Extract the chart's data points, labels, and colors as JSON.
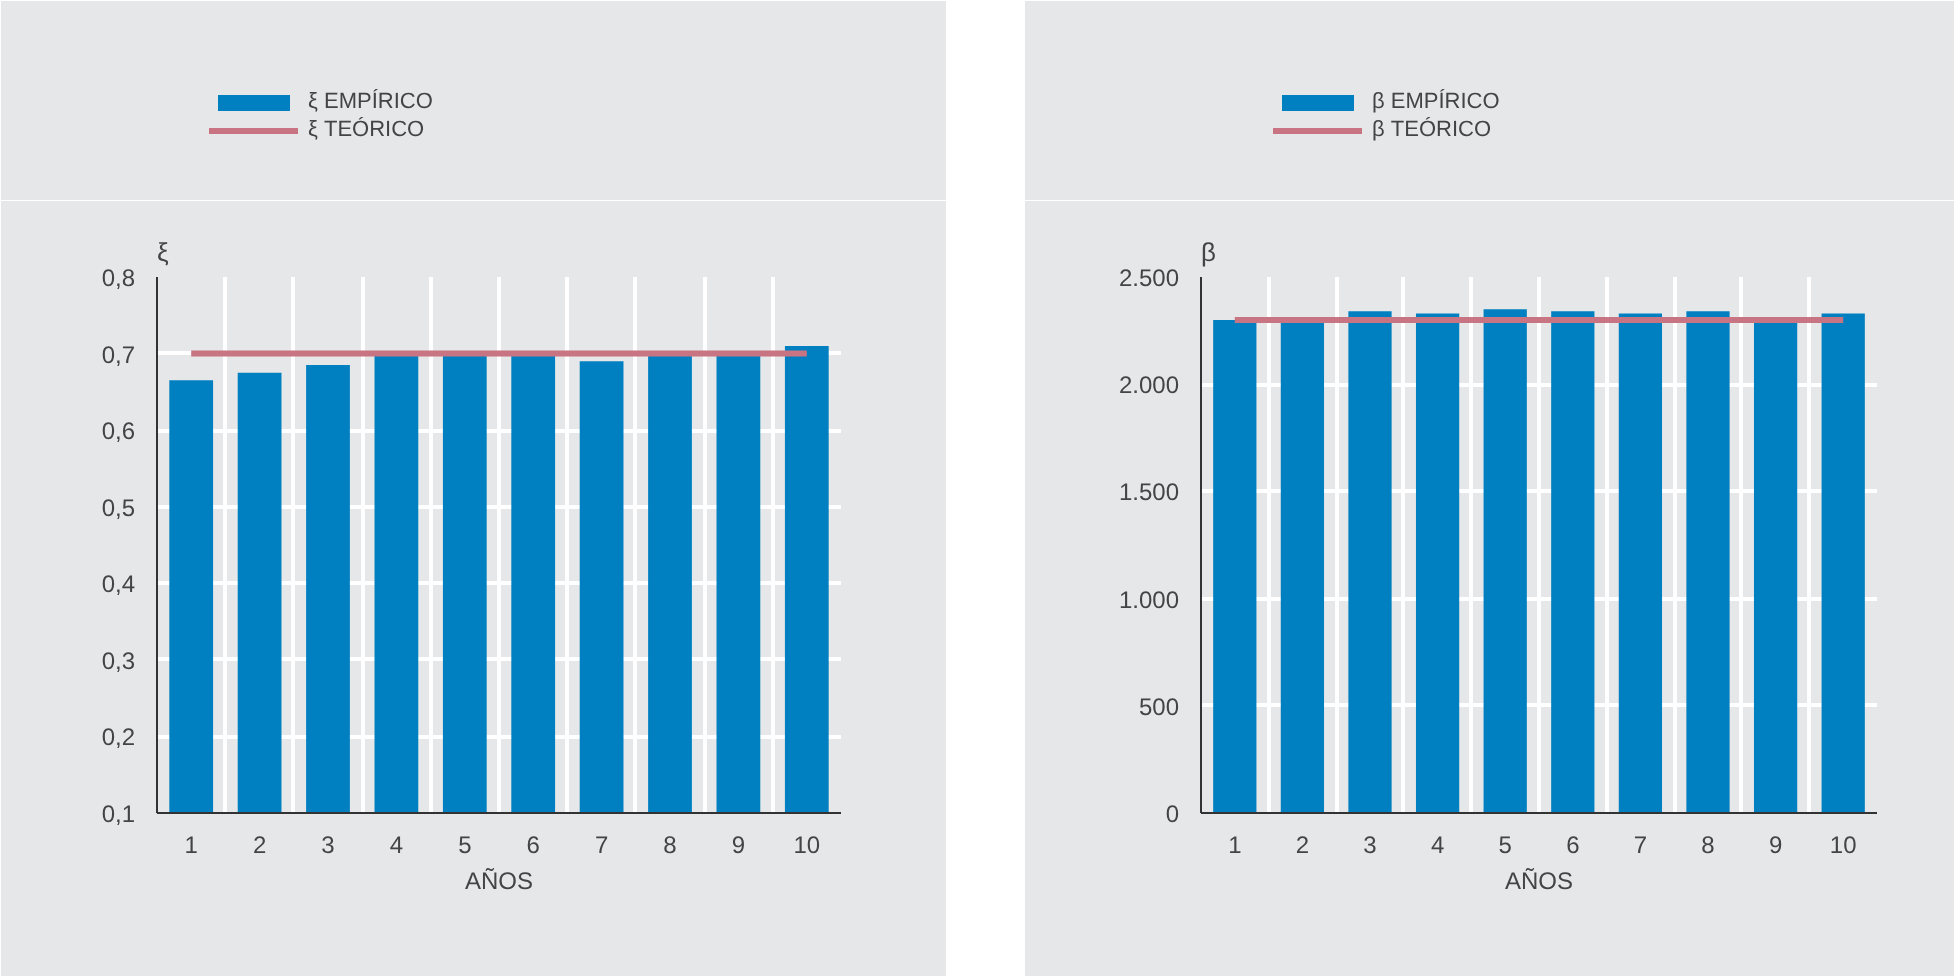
{
  "chart_data": [
    {
      "type": "bar",
      "ylabel": "ξ",
      "xlabel": "AÑOS",
      "categories": [
        "1",
        "2",
        "3",
        "4",
        "5",
        "6",
        "7",
        "8",
        "9",
        "10"
      ],
      "series": [
        {
          "name": "ξ EMPÍRICO",
          "color": "#0080c0",
          "values": [
            0.665,
            0.675,
            0.685,
            0.7,
            0.7,
            0.7,
            0.69,
            0.7,
            0.7,
            0.71
          ]
        },
        {
          "name": "ξ TEÓRICO",
          "type": "line",
          "color": "#c87482",
          "values": [
            0.7,
            0.7,
            0.7,
            0.7,
            0.7,
            0.7,
            0.7,
            0.7,
            0.7,
            0.7
          ]
        }
      ],
      "ylim": [
        0.1,
        0.8
      ],
      "yticks": [
        {
          "value": 0.1,
          "label": "0,1"
        },
        {
          "value": 0.2,
          "label": "0,2"
        },
        {
          "value": 0.3,
          "label": "0,3"
        },
        {
          "value": 0.4,
          "label": "0,4"
        },
        {
          "value": 0.5,
          "label": "0,5"
        },
        {
          "value": 0.6,
          "label": "0,6"
        },
        {
          "value": 0.7,
          "label": "0,7"
        },
        {
          "value": 0.8,
          "label": "0,8"
        }
      ],
      "grid": true,
      "legend": "top left"
    },
    {
      "type": "bar",
      "ylabel": "β",
      "xlabel": "AÑOS",
      "categories": [
        "1",
        "2",
        "3",
        "4",
        "5",
        "6",
        "7",
        "8",
        "9",
        "10"
      ],
      "series": [
        {
          "name": "β EMPÍRICO",
          "color": "#0080c0",
          "values": [
            2300,
            2300,
            2340,
            2330,
            2350,
            2340,
            2330,
            2340,
            2290,
            2330
          ]
        },
        {
          "name": "β TEÓRICO",
          "type": "line",
          "color": "#c87482",
          "values": [
            2300,
            2300,
            2300,
            2300,
            2300,
            2300,
            2300,
            2300,
            2300,
            2300
          ]
        }
      ],
      "ylim": [
        0,
        2500
      ],
      "yticks": [
        0,
        500,
        {
          "value": 1000,
          "label": "1.000"
        },
        {
          "value": 1500,
          "label": "1.500"
        },
        {
          "value": 2000,
          "label": "2.000"
        },
        {
          "value": 2500,
          "label": "2.500"
        }
      ],
      "grid": true,
      "legend": "top left"
    }
  ]
}
